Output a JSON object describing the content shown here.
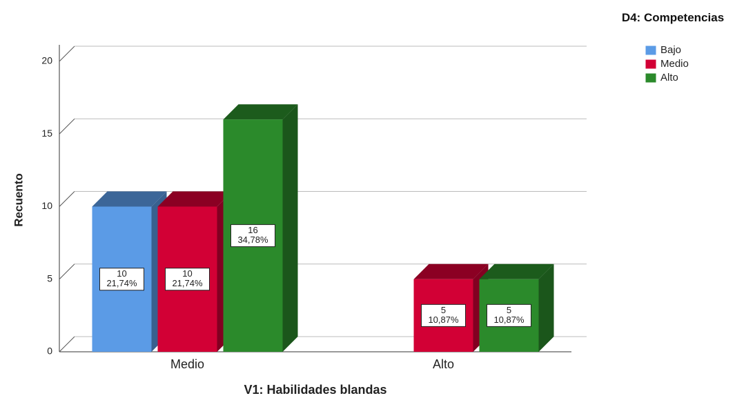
{
  "chart_data": {
    "type": "bar3d",
    "xlabel": "V1: Habilidades blandas",
    "ylabel": "Recuento",
    "legend_title": "D4: Competencias",
    "categories": [
      "Medio",
      "Alto"
    ],
    "series": [
      {
        "name": "Bajo",
        "color": "#5b9be6",
        "values": [
          10,
          null
        ],
        "value_labels": [
          [
            "10",
            "21,74%"
          ],
          null
        ]
      },
      {
        "name": "Medio",
        "color": "#d20035",
        "values": [
          10,
          5
        ],
        "value_labels": [
          [
            "10",
            "21,74%"
          ],
          [
            "5",
            "10,87%"
          ]
        ]
      },
      {
        "name": "Alto",
        "color": "#2b8a2b",
        "values": [
          16,
          5
        ],
        "value_labels": [
          [
            "16",
            "34,78%"
          ],
          [
            "5",
            "10,87%"
          ]
        ]
      }
    ],
    "ylim": [
      0,
      20
    ],
    "yticks": [
      0,
      5,
      10,
      15,
      20
    ],
    "grid": true
  }
}
